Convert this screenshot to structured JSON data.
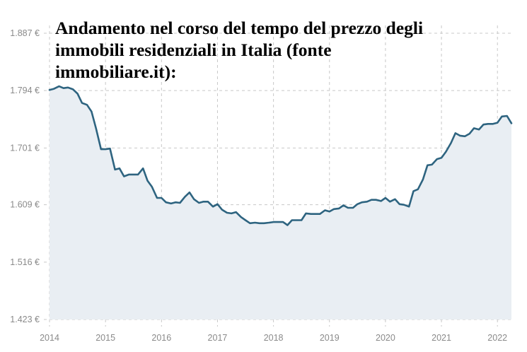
{
  "chart_data": {
    "type": "area",
    "title_lines": [
      "Andamento nel corso del tempo del prezzo degli",
      "immobili residenziali in Italia (fonte",
      "immobiliare.it):"
    ],
    "xlabel": "",
    "ylabel": "",
    "x_ticks": [
      "2014",
      "2015",
      "2016",
      "2017",
      "2018",
      "2019",
      "2020",
      "2021",
      "2022"
    ],
    "y_ticks": [
      "1.423 €",
      "1.516 €",
      "1.609 €",
      "1.701 €",
      "1.794 €",
      "1.887 €"
    ],
    "y_tick_values": [
      1423,
      1516,
      1609,
      1701,
      1794,
      1887
    ],
    "xlim": [
      2014.0,
      2022.25
    ],
    "ylim": [
      1423,
      1887
    ],
    "grid": true,
    "colors": {
      "line": "#2e6480",
      "fill": "#e9eef3",
      "grid": "#c8c8c8"
    },
    "series": [
      {
        "values": [
          [
            2014.0,
            1795
          ],
          [
            2014.08,
            1797
          ],
          [
            2014.17,
            1801
          ],
          [
            2014.25,
            1798
          ],
          [
            2014.33,
            1799
          ],
          [
            2014.42,
            1796
          ],
          [
            2014.5,
            1789
          ],
          [
            2014.58,
            1774
          ],
          [
            2014.67,
            1771
          ],
          [
            2014.75,
            1760
          ],
          [
            2014.83,
            1733
          ],
          [
            2014.92,
            1699
          ],
          [
            2015.0,
            1699
          ],
          [
            2015.08,
            1700
          ],
          [
            2015.17,
            1666
          ],
          [
            2015.25,
            1668
          ],
          [
            2015.33,
            1655
          ],
          [
            2015.42,
            1658
          ],
          [
            2015.5,
            1658
          ],
          [
            2015.58,
            1658
          ],
          [
            2015.67,
            1668
          ],
          [
            2015.75,
            1648
          ],
          [
            2015.83,
            1638
          ],
          [
            2015.92,
            1620
          ],
          [
            2016.0,
            1620
          ],
          [
            2016.08,
            1613
          ],
          [
            2016.17,
            1611
          ],
          [
            2016.25,
            1613
          ],
          [
            2016.33,
            1612
          ],
          [
            2016.42,
            1622
          ],
          [
            2016.5,
            1629
          ],
          [
            2016.58,
            1618
          ],
          [
            2016.67,
            1612
          ],
          [
            2016.75,
            1614
          ],
          [
            2016.83,
            1614
          ],
          [
            2016.92,
            1606
          ],
          [
            2017.0,
            1610
          ],
          [
            2017.08,
            1601
          ],
          [
            2017.17,
            1596
          ],
          [
            2017.25,
            1595
          ],
          [
            2017.33,
            1597
          ],
          [
            2017.42,
            1589
          ],
          [
            2017.5,
            1584
          ],
          [
            2017.58,
            1579
          ],
          [
            2017.67,
            1580
          ],
          [
            2017.75,
            1579
          ],
          [
            2017.83,
            1579
          ],
          [
            2017.92,
            1580
          ],
          [
            2018.0,
            1581
          ],
          [
            2018.08,
            1581
          ],
          [
            2018.17,
            1581
          ],
          [
            2018.25,
            1576
          ],
          [
            2018.33,
            1584
          ],
          [
            2018.42,
            1584
          ],
          [
            2018.5,
            1584
          ],
          [
            2018.58,
            1595
          ],
          [
            2018.67,
            1594
          ],
          [
            2018.75,
            1594
          ],
          [
            2018.83,
            1594
          ],
          [
            2018.92,
            1600
          ],
          [
            2019.0,
            1598
          ],
          [
            2019.08,
            1602
          ],
          [
            2019.17,
            1603
          ],
          [
            2019.25,
            1608
          ],
          [
            2019.33,
            1604
          ],
          [
            2019.42,
            1604
          ],
          [
            2019.5,
            1610
          ],
          [
            2019.58,
            1613
          ],
          [
            2019.67,
            1614
          ],
          [
            2019.75,
            1617
          ],
          [
            2019.83,
            1617
          ],
          [
            2019.92,
            1615
          ],
          [
            2020.0,
            1620
          ],
          [
            2020.08,
            1614
          ],
          [
            2020.17,
            1618
          ],
          [
            2020.25,
            1610
          ],
          [
            2020.33,
            1609
          ],
          [
            2020.42,
            1606
          ],
          [
            2020.5,
            1631
          ],
          [
            2020.58,
            1634
          ],
          [
            2020.67,
            1650
          ],
          [
            2020.75,
            1673
          ],
          [
            2020.83,
            1674
          ],
          [
            2020.92,
            1683
          ],
          [
            2021.0,
            1685
          ],
          [
            2021.08,
            1695
          ],
          [
            2021.17,
            1709
          ],
          [
            2021.25,
            1725
          ],
          [
            2021.33,
            1721
          ],
          [
            2021.42,
            1720
          ],
          [
            2021.5,
            1724
          ],
          [
            2021.58,
            1733
          ],
          [
            2021.67,
            1731
          ],
          [
            2021.75,
            1739
          ],
          [
            2021.83,
            1740
          ],
          [
            2021.92,
            1740
          ],
          [
            2022.0,
            1742
          ],
          [
            2022.08,
            1752
          ],
          [
            2022.17,
            1753
          ],
          [
            2022.25,
            1741
          ]
        ]
      }
    ]
  }
}
